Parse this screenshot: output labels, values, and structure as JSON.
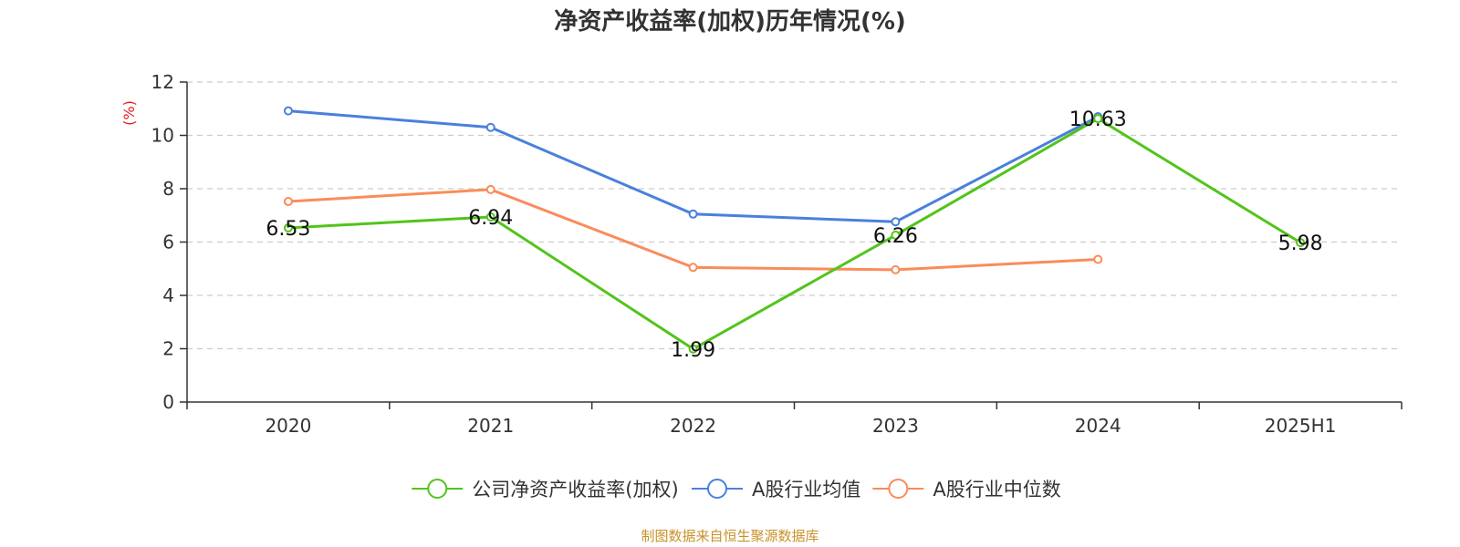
{
  "chart_data": {
    "type": "line",
    "title": "净资产收益率(加权)历年情况(%)",
    "ylabel": "(%)",
    "xlabel": "",
    "ylim": [
      0,
      12
    ],
    "yticks": [
      0,
      2,
      4,
      6,
      8,
      10,
      12
    ],
    "categories": [
      "2020",
      "2021",
      "2022",
      "2023",
      "2024",
      "2025H1"
    ],
    "grid": true,
    "legend_position": "bottom",
    "series": [
      {
        "name": "公司净资产收益率(加权)",
        "color": "#52c41a",
        "values": [
          6.53,
          6.94,
          1.99,
          6.26,
          10.63,
          5.98
        ],
        "labels": [
          "6.53",
          "6.94",
          "1.99",
          "6.26",
          "10.63",
          "5.98"
        ]
      },
      {
        "name": "A股行业均值",
        "color": "#4a80dc",
        "values": [
          10.92,
          10.3,
          7.05,
          6.76,
          10.7,
          null
        ]
      },
      {
        "name": "A股行业中位数",
        "color": "#fa8c5a",
        "values": [
          7.52,
          7.97,
          5.05,
          4.96,
          5.35,
          null
        ]
      }
    ],
    "source": "制图数据来自恒生聚源数据库"
  }
}
